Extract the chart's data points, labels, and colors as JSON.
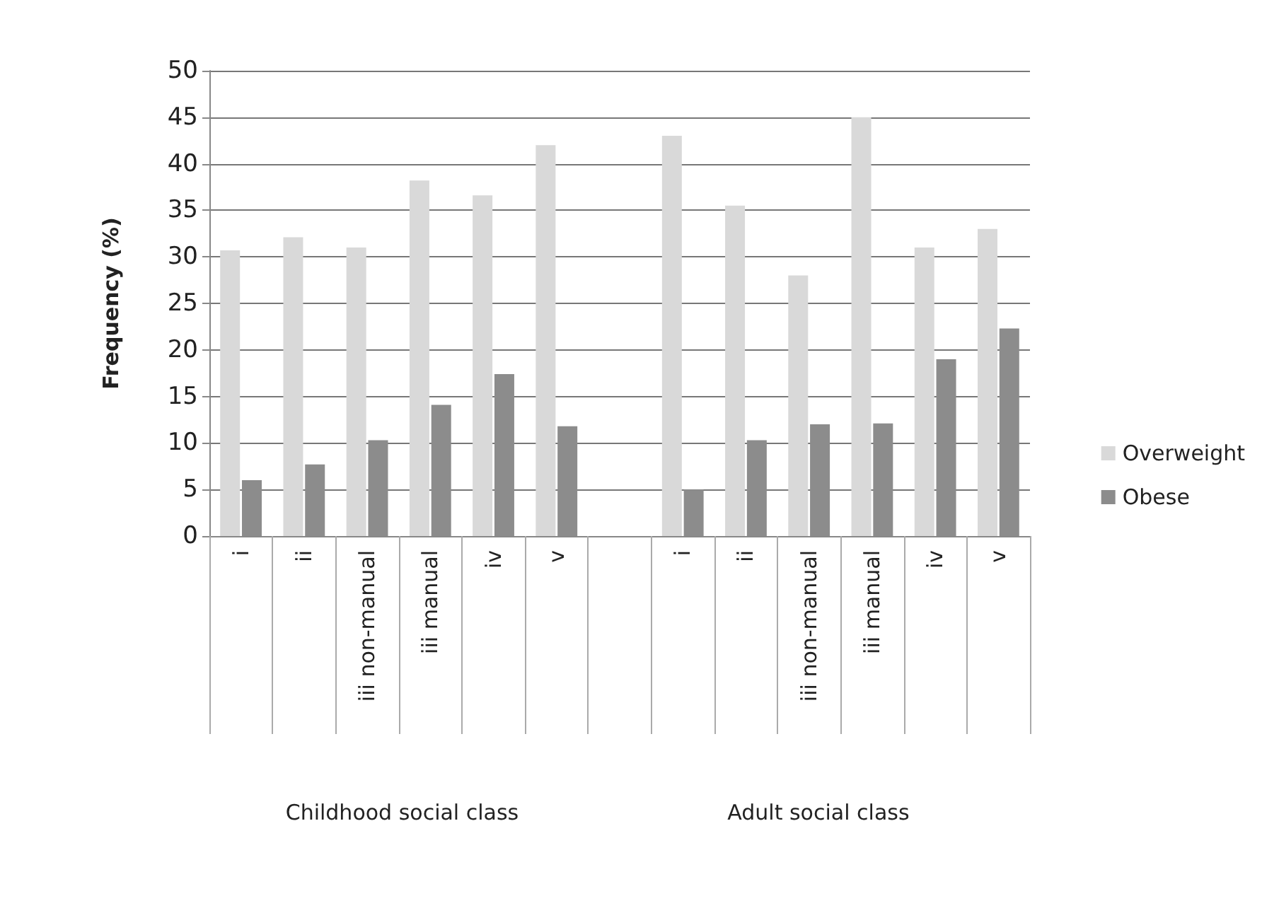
{
  "chart_data": {
    "type": "bar",
    "ylabel": "Frequency (%)",
    "categories": [
      "i",
      "ii",
      "iii non-manual",
      "iii manual",
      "iv",
      "v",
      null,
      "i",
      "ii",
      "iii non-manual",
      "iii manual",
      "iv",
      "v"
    ],
    "series": [
      {
        "name": "Overweight",
        "color": "#d9d9d9",
        "values": [
          30.7,
          32.1,
          31,
          38.2,
          36.6,
          42,
          null,
          43,
          35.5,
          28,
          45,
          31,
          33
        ]
      },
      {
        "name": "Obese",
        "color": "#8c8c8c",
        "values": [
          6,
          7.7,
          10.3,
          14.1,
          17.4,
          11.8,
          null,
          5,
          10.3,
          12,
          12.1,
          19,
          22.3
        ]
      }
    ],
    "ylim": [
      0,
      50
    ],
    "yticks": [
      0,
      5,
      10,
      15,
      20,
      25,
      30,
      35,
      40,
      45,
      50
    ],
    "grid": "y",
    "legend": "right",
    "annotations": [
      "Childhood social class",
      "Adult social class"
    ]
  }
}
